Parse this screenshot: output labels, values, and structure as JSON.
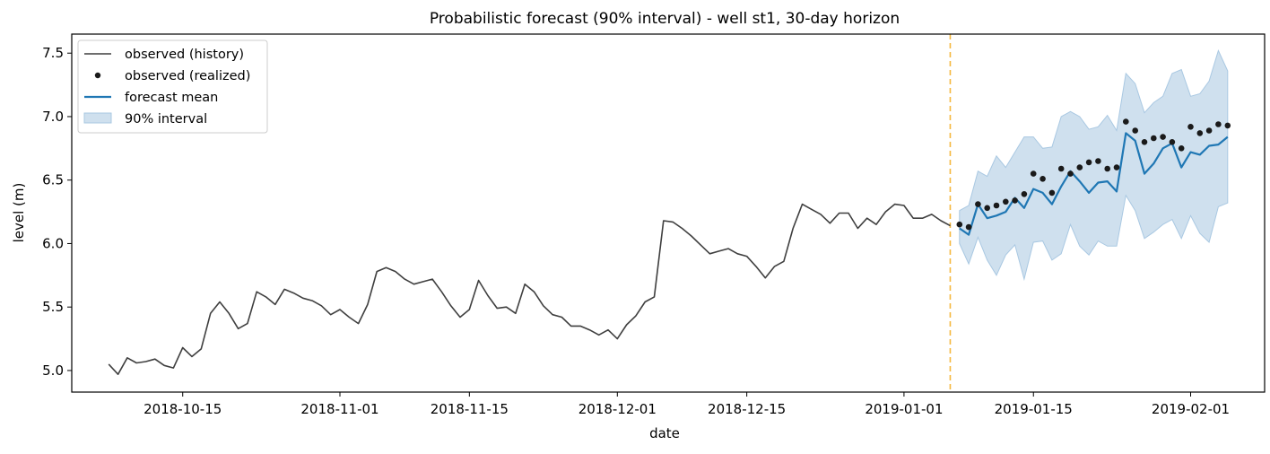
{
  "chart_data": {
    "type": "line",
    "title": "Probabilistic forecast (90% interval) - well st1, 30-day horizon",
    "xlabel": "date",
    "ylabel": "level (m)",
    "xlim": [
      "2018-10-03",
      "2019-02-09"
    ],
    "ylim": [
      4.83,
      7.65
    ],
    "x_ticks": [
      {
        "date": "2018-10-15",
        "label": "2018-10-15"
      },
      {
        "date": "2018-11-01",
        "label": "2018-11-01"
      },
      {
        "date": "2018-11-15",
        "label": "2018-11-15"
      },
      {
        "date": "2018-12-01",
        "label": "2018-12-01"
      },
      {
        "date": "2018-12-15",
        "label": "2018-12-15"
      },
      {
        "date": "2019-01-01",
        "label": "2019-01-01"
      },
      {
        "date": "2019-01-15",
        "label": "2019-01-15"
      },
      {
        "date": "2019-02-01",
        "label": "2019-02-01"
      }
    ],
    "y_ticks": [
      {
        "value": 5.0,
        "label": "5.0"
      },
      {
        "value": 5.5,
        "label": "5.5"
      },
      {
        "value": 6.0,
        "label": "6.0"
      },
      {
        "value": 6.5,
        "label": "6.5"
      },
      {
        "value": 7.0,
        "label": "7.0"
      },
      {
        "value": 7.5,
        "label": "7.5"
      }
    ],
    "grid": false,
    "legend_position": "upper left",
    "forecast_start": "2019-01-06",
    "colors": {
      "history": "#3f3f3f",
      "realized": "#1a1a1a",
      "mean": "#1f77b4",
      "interval": "#cfe0ee",
      "interval_edge": "#a9c8e2",
      "forecast_start": "#f5b83d"
    },
    "legend": [
      {
        "key": "history",
        "label": "observed (history)"
      },
      {
        "key": "realized",
        "label": "observed (realized)"
      },
      {
        "key": "mean",
        "label": "forecast mean"
      },
      {
        "key": "interval",
        "label": "90% interval"
      }
    ],
    "history": {
      "name": "observed (history)",
      "dates": [
        "2018-10-07",
        "2018-10-08",
        "2018-10-09",
        "2018-10-10",
        "2018-10-11",
        "2018-10-12",
        "2018-10-13",
        "2018-10-14",
        "2018-10-15",
        "2018-10-16",
        "2018-10-17",
        "2018-10-18",
        "2018-10-19",
        "2018-10-20",
        "2018-10-21",
        "2018-10-22",
        "2018-10-23",
        "2018-10-24",
        "2018-10-25",
        "2018-10-26",
        "2018-10-27",
        "2018-10-28",
        "2018-10-29",
        "2018-10-30",
        "2018-10-31",
        "2018-11-01",
        "2018-11-02",
        "2018-11-03",
        "2018-11-04",
        "2018-11-05",
        "2018-11-06",
        "2018-11-07",
        "2018-11-08",
        "2018-11-09",
        "2018-11-10",
        "2018-11-11",
        "2018-11-12",
        "2018-11-13",
        "2018-11-14",
        "2018-11-15",
        "2018-11-16",
        "2018-11-17",
        "2018-11-18",
        "2018-11-19",
        "2018-11-20",
        "2018-11-21",
        "2018-11-22",
        "2018-11-23",
        "2018-11-24",
        "2018-11-25",
        "2018-11-26",
        "2018-11-27",
        "2018-11-28",
        "2018-11-29",
        "2018-11-30",
        "2018-12-01",
        "2018-12-02",
        "2018-12-03",
        "2018-12-04",
        "2018-12-05",
        "2018-12-06",
        "2018-12-07",
        "2018-12-08",
        "2018-12-09",
        "2018-12-10",
        "2018-12-11",
        "2018-12-12",
        "2018-12-13",
        "2018-12-14",
        "2018-12-15",
        "2018-12-16",
        "2018-12-17",
        "2018-12-18",
        "2018-12-19",
        "2018-12-20",
        "2018-12-21",
        "2018-12-22",
        "2018-12-23",
        "2018-12-24",
        "2018-12-25",
        "2018-12-26",
        "2018-12-27",
        "2018-12-28",
        "2018-12-29",
        "2018-12-30",
        "2018-12-31",
        "2019-01-01",
        "2019-01-02",
        "2019-01-03",
        "2019-01-04",
        "2019-01-05",
        "2019-01-06"
      ],
      "values": [
        5.05,
        4.97,
        5.1,
        5.06,
        5.07,
        5.09,
        5.04,
        5.02,
        5.18,
        5.11,
        5.17,
        5.45,
        5.54,
        5.45,
        5.33,
        5.37,
        5.62,
        5.58,
        5.52,
        5.64,
        5.61,
        5.57,
        5.55,
        5.51,
        5.44,
        5.48,
        5.42,
        5.37,
        5.52,
        5.78,
        5.81,
        5.78,
        5.72,
        5.68,
        5.7,
        5.72,
        5.62,
        5.51,
        5.42,
        5.48,
        5.71,
        5.59,
        5.49,
        5.5,
        5.45,
        5.68,
        5.62,
        5.51,
        5.44,
        5.42,
        5.35,
        5.35,
        5.32,
        5.28,
        5.32,
        5.25,
        5.36,
        5.43,
        5.54,
        5.58,
        6.18,
        6.17,
        6.12,
        6.06,
        5.99,
        5.92,
        5.94,
        5.96,
        5.92,
        5.9,
        5.82,
        5.73,
        5.82,
        5.86,
        6.12,
        6.31,
        6.27,
        6.23,
        6.16,
        6.24,
        6.24,
        6.12,
        6.2,
        6.15,
        6.25,
        6.31,
        6.3,
        6.2,
        6.2,
        6.23,
        6.18,
        6.14
      ]
    },
    "forecast": {
      "dates": [
        "2019-01-07",
        "2019-01-08",
        "2019-01-09",
        "2019-01-10",
        "2019-01-11",
        "2019-01-12",
        "2019-01-13",
        "2019-01-14",
        "2019-01-15",
        "2019-01-16",
        "2019-01-17",
        "2019-01-18",
        "2019-01-19",
        "2019-01-20",
        "2019-01-21",
        "2019-01-22",
        "2019-01-23",
        "2019-01-24",
        "2019-01-25",
        "2019-01-26",
        "2019-01-27",
        "2019-01-28",
        "2019-01-29",
        "2019-01-30",
        "2019-01-31",
        "2019-02-01",
        "2019-02-02",
        "2019-02-03",
        "2019-02-04",
        "2019-02-05"
      ],
      "realized": [
        6.15,
        6.13,
        6.31,
        6.28,
        6.3,
        6.33,
        6.34,
        6.39,
        6.55,
        6.51,
        6.4,
        6.59,
        6.55,
        6.6,
        6.64,
        6.65,
        6.59,
        6.6,
        6.96,
        6.89,
        6.8,
        6.83,
        6.84,
        6.8,
        6.75,
        6.92,
        6.87,
        6.89,
        6.94,
        6.93
      ],
      "mean": [
        6.12,
        6.07,
        6.31,
        6.2,
        6.22,
        6.25,
        6.36,
        6.28,
        6.43,
        6.4,
        6.31,
        6.45,
        6.57,
        6.49,
        6.4,
        6.48,
        6.49,
        6.41,
        6.87,
        6.81,
        6.55,
        6.63,
        6.75,
        6.79,
        6.6,
        6.72,
        6.7,
        6.77,
        6.78,
        6.84
      ],
      "lower": [
        6.0,
        5.84,
        6.05,
        5.87,
        5.75,
        5.91,
        5.99,
        5.72,
        6.01,
        6.02,
        5.87,
        5.92,
        6.15,
        5.98,
        5.91,
        6.02,
        5.98,
        5.98,
        6.38,
        6.26,
        6.04,
        6.09,
        6.15,
        6.19,
        6.04,
        6.22,
        6.08,
        6.01,
        6.29,
        6.32
      ],
      "upper": [
        6.26,
        6.3,
        6.57,
        6.53,
        6.69,
        6.6,
        6.72,
        6.84,
        6.84,
        6.75,
        6.76,
        7.0,
        7.04,
        7.0,
        6.9,
        6.92,
        7.01,
        6.89,
        7.34,
        7.26,
        7.03,
        7.11,
        7.16,
        7.34,
        7.37,
        7.16,
        7.18,
        7.28,
        7.52,
        7.36
      ]
    }
  }
}
